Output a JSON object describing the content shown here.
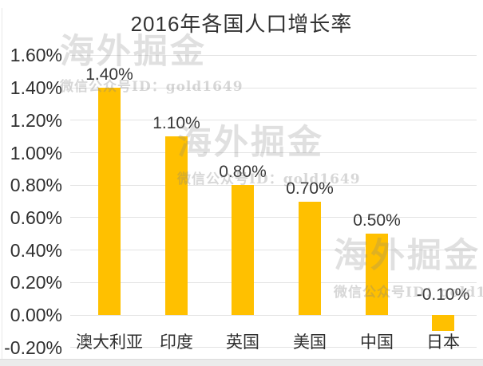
{
  "chart_data": {
    "type": "bar",
    "title": "2016年各国人口增长率",
    "categories": [
      "澳大利亚",
      "印度",
      "英国",
      "美国",
      "中国",
      "日本"
    ],
    "values": [
      1.4,
      1.1,
      0.8,
      0.7,
      0.5,
      -0.1
    ],
    "data_labels": [
      "1.40%",
      "1.10%",
      "0.80%",
      "0.70%",
      "0.50%",
      "-0.10%"
    ],
    "y_tick_labels": [
      "1.60%",
      "1.40%",
      "1.20%",
      "1.00%",
      "0.80%",
      "0.60%",
      "0.40%",
      "0.20%",
      "0.00%",
      "-0.20%"
    ],
    "ylim": [
      -0.2,
      1.6
    ],
    "y_tick_step": 0.2,
    "xlabel": "",
    "ylabel": "",
    "grid": true,
    "legend": "none",
    "bar_color": "#FFC000",
    "text_color": "#363636",
    "grid_color": "#e3e3e3"
  },
  "watermark": {
    "brand": "海外掘金",
    "id_line": "微信公众号ID：gold1649"
  }
}
